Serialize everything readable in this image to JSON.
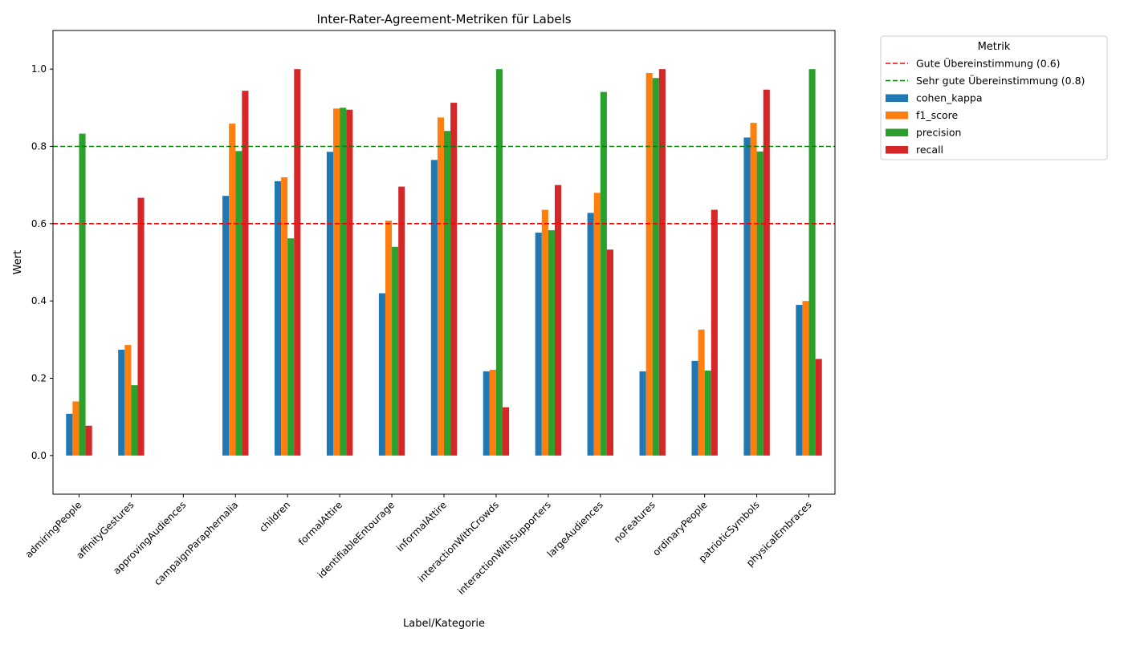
{
  "chart_data": {
    "type": "bar",
    "title": "Inter-Rater-Agreement-Metriken für Labels",
    "xlabel": "Label/Kategorie",
    "ylabel": "Wert",
    "ylim": [
      -0.1,
      1.1
    ],
    "yticks": [
      "0.0",
      "0.2",
      "0.4",
      "0.6",
      "0.8",
      "1.0"
    ],
    "ytick_values": [
      0.0,
      0.2,
      0.4,
      0.6,
      0.8,
      1.0
    ],
    "grid": false,
    "legend_position": "outside-top-right",
    "legend_title": "Metrik",
    "categories": [
      "admiringPeople",
      "affinityGestures",
      "approvingAudiences",
      "campaignParaphernalia",
      "children",
      "formalAttire",
      "identifiableEntourage",
      "informalAttire",
      "interactionWithCrowds",
      "interactionWithSupporters",
      "largeAudiences",
      "noFeatures",
      "ordinaryPeople",
      "patrioticSymbols",
      "physicalEmbraces"
    ],
    "series": [
      {
        "name": "cohen_kappa",
        "color": "#1f77b4",
        "values": [
          0.108,
          0.274,
          0,
          0.672,
          0.71,
          0.786,
          0.42,
          0.765,
          0.218,
          0.577,
          0.628,
          0.218,
          0.245,
          0.823,
          0.39
        ]
      },
      {
        "name": "f1_score",
        "color": "#ff7f0e",
        "values": [
          0.14,
          0.286,
          0,
          0.859,
          0.72,
          0.898,
          0.608,
          0.875,
          0.222,
          0.636,
          0.68,
          0.99,
          0.326,
          0.861,
          0.4
        ]
      },
      {
        "name": "precision",
        "color": "#2ca02c",
        "values": [
          0.833,
          0.182,
          0,
          0.788,
          0.562,
          0.9,
          0.54,
          0.84,
          1.0,
          0.583,
          0.941,
          0.977,
          0.22,
          0.787,
          1.0
        ]
      },
      {
        "name": "recall",
        "color": "#d62728",
        "values": [
          0.077,
          0.667,
          0,
          0.944,
          1.0,
          0.895,
          0.696,
          0.913,
          0.125,
          0.7,
          0.533,
          1.0,
          0.636,
          0.947,
          0.25
        ]
      }
    ],
    "reference_lines": [
      {
        "name": "Gute Übereinstimmung (0.6)",
        "value": 0.6,
        "color": "#ff0000"
      },
      {
        "name": "Sehr gute Übereinstimmung (0.8)",
        "value": 0.8,
        "color": "#008000"
      }
    ]
  }
}
